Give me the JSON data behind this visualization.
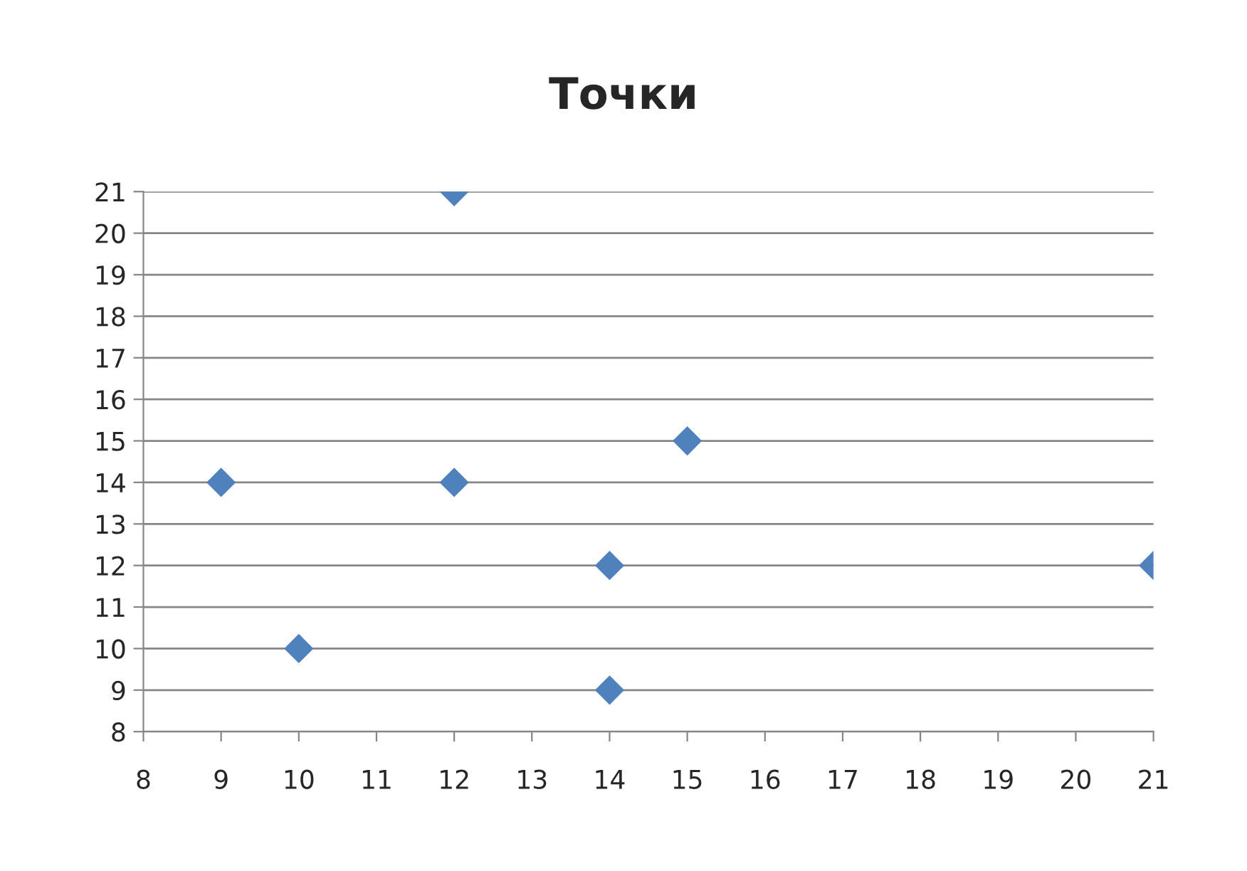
{
  "chart_data": {
    "type": "scatter",
    "title": "Точки",
    "x": [
      9,
      10,
      12,
      12,
      14,
      14,
      15,
      21
    ],
    "series": [
      {
        "color": "#4f81bd",
        "values": [
          14,
          10,
          21,
          14,
          12,
          9,
          15,
          12
        ]
      }
    ],
    "xlim": [
      8,
      21
    ],
    "ylim": [
      8,
      21
    ],
    "xticks": [
      8,
      9,
      10,
      11,
      12,
      13,
      14,
      15,
      16,
      17,
      18,
      19,
      20,
      21
    ],
    "yticks": [
      8,
      9,
      10,
      11,
      12,
      13,
      14,
      15,
      16,
      17,
      18,
      19,
      20,
      21
    ],
    "grid": "y",
    "marker": "diamond",
    "legend": false
  }
}
